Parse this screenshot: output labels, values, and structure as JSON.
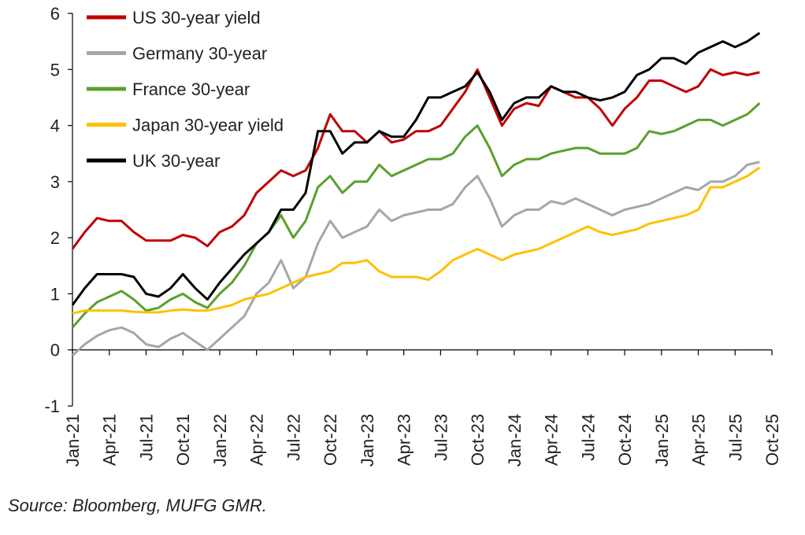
{
  "chart_data": {
    "type": "line",
    "categories": [
      "Jan-21",
      null,
      null,
      "Apr-21",
      null,
      null,
      "Jul-21",
      null,
      null,
      "Oct-21",
      null,
      null,
      "Jan-22",
      null,
      null,
      "Apr-22",
      null,
      null,
      "Jul-22",
      null,
      null,
      "Oct-22",
      null,
      null,
      "Jan-23",
      null,
      null,
      "Apr-23",
      null,
      null,
      "Jul-23",
      null,
      null,
      "Oct-23",
      null,
      null,
      "Jan-24",
      null,
      null,
      "Apr-24",
      null,
      null,
      "Jul-24",
      null,
      null,
      "Oct-24",
      null,
      null,
      "Jan-25",
      null,
      null,
      "Apr-25",
      null,
      null,
      "Jul-25",
      null,
      null,
      "Oct-25"
    ],
    "series": [
      {
        "name": "US 30-year yield",
        "color": "#c00000",
        "values": [
          1.8,
          2.1,
          2.35,
          2.3,
          2.3,
          2.1,
          1.95,
          1.95,
          1.95,
          2.05,
          2.0,
          1.85,
          2.1,
          2.2,
          2.4,
          2.8,
          3.0,
          3.2,
          3.1,
          3.2,
          3.6,
          4.2,
          3.9,
          3.9,
          3.7,
          3.9,
          3.7,
          3.75,
          3.9,
          3.9,
          4.0,
          4.3,
          4.6,
          5.0,
          4.5,
          4.0,
          4.3,
          4.4,
          4.35,
          4.7,
          4.6,
          4.5,
          4.5,
          4.3,
          4.0,
          4.3,
          4.5,
          4.8,
          4.8,
          4.7,
          4.6,
          4.7,
          5.0,
          4.9,
          4.95,
          4.9,
          4.95,
          null
        ]
      },
      {
        "name": "Germany 30-year",
        "color": "#a6a6a6",
        "values": [
          -0.1,
          0.1,
          0.25,
          0.35,
          0.4,
          0.3,
          0.1,
          0.05,
          0.2,
          0.3,
          0.15,
          0.0,
          0.2,
          0.4,
          0.6,
          1.0,
          1.2,
          1.6,
          1.1,
          1.3,
          1.9,
          2.3,
          2.0,
          2.1,
          2.2,
          2.5,
          2.3,
          2.4,
          2.45,
          2.5,
          2.5,
          2.6,
          2.9,
          3.1,
          2.7,
          2.2,
          2.4,
          2.5,
          2.5,
          2.65,
          2.6,
          2.7,
          2.6,
          2.5,
          2.4,
          2.5,
          2.55,
          2.6,
          2.7,
          2.8,
          2.9,
          2.85,
          3.0,
          3.0,
          3.1,
          3.3,
          3.35,
          null
        ]
      },
      {
        "name": "France 30-year",
        "color": "#5aa02c",
        "values": [
          0.4,
          0.65,
          0.85,
          0.95,
          1.05,
          0.9,
          0.7,
          0.75,
          0.9,
          1.0,
          0.85,
          0.75,
          1.0,
          1.2,
          1.5,
          1.9,
          2.1,
          2.4,
          2.0,
          2.3,
          2.9,
          3.1,
          2.8,
          3.0,
          3.0,
          3.3,
          3.1,
          3.2,
          3.3,
          3.4,
          3.4,
          3.5,
          3.8,
          4.0,
          3.6,
          3.1,
          3.3,
          3.4,
          3.4,
          3.5,
          3.55,
          3.6,
          3.6,
          3.5,
          3.5,
          3.5,
          3.6,
          3.9,
          3.85,
          3.9,
          4.0,
          4.1,
          4.1,
          4.0,
          4.1,
          4.2,
          4.4,
          null
        ]
      },
      {
        "name": "Japan 30-year yield",
        "color": "#ffc000",
        "values": [
          0.65,
          0.7,
          0.7,
          0.7,
          0.7,
          0.68,
          0.67,
          0.67,
          0.7,
          0.72,
          0.7,
          0.7,
          0.75,
          0.8,
          0.9,
          0.95,
          1.0,
          1.1,
          1.2,
          1.3,
          1.35,
          1.4,
          1.55,
          1.55,
          1.6,
          1.4,
          1.3,
          1.3,
          1.3,
          1.25,
          1.4,
          1.6,
          1.7,
          1.8,
          1.7,
          1.6,
          1.7,
          1.75,
          1.8,
          1.9,
          2.0,
          2.1,
          2.2,
          2.1,
          2.05,
          2.1,
          2.15,
          2.25,
          2.3,
          2.35,
          2.4,
          2.5,
          2.9,
          2.9,
          3.0,
          3.1,
          3.25,
          null
        ]
      },
      {
        "name": "UK 30-year",
        "color": "#000000",
        "values": [
          0.8,
          1.1,
          1.35,
          1.35,
          1.35,
          1.3,
          1.0,
          0.95,
          1.1,
          1.35,
          1.1,
          0.9,
          1.2,
          1.45,
          1.7,
          1.9,
          2.1,
          2.5,
          2.5,
          2.8,
          3.9,
          3.9,
          3.5,
          3.7,
          3.7,
          3.9,
          3.8,
          3.8,
          4.1,
          4.5,
          4.5,
          4.6,
          4.7,
          4.95,
          4.6,
          4.1,
          4.4,
          4.5,
          4.5,
          4.7,
          4.6,
          4.6,
          4.5,
          4.45,
          4.5,
          4.6,
          4.9,
          5.0,
          5.2,
          5.2,
          5.1,
          5.3,
          5.4,
          5.5,
          5.4,
          5.5,
          5.65,
          null
        ]
      }
    ],
    "ylim": [
      -1,
      6
    ],
    "yticks": [
      -1,
      0,
      1,
      2,
      3,
      4,
      5,
      6
    ],
    "legend": "upper-left",
    "grid": false,
    "source": "Source: Bloomberg, MUFG GMR."
  }
}
